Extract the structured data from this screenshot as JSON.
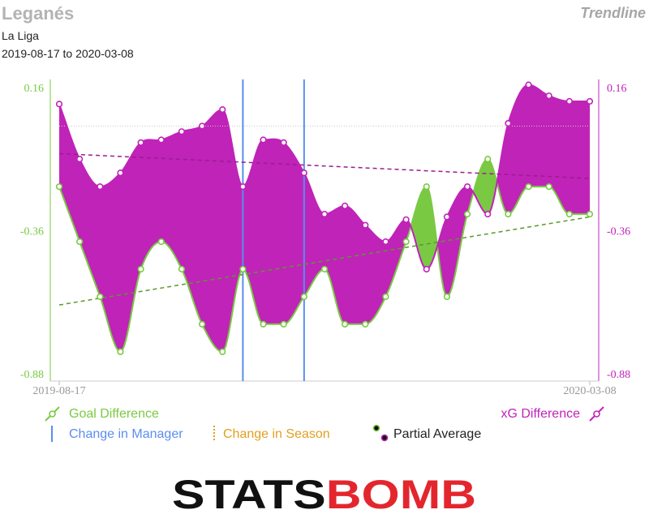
{
  "header": {
    "title": "Leganés",
    "subtitle1": "La Liga",
    "subtitle2": "2019-08-17 to 2020-03-08",
    "mode": "Trendline"
  },
  "logo": {
    "text_left": "STATS",
    "text_right": "BOMB",
    "color_left": "#111111",
    "color_right": "#e3262e"
  },
  "colors": {
    "goal": "#7ac943",
    "goal_dark": "#5a9a2c",
    "xg": "#c023b8",
    "xg_dark": "#9c1b93",
    "manager": "#5b8def",
    "season": "#e0a020"
  },
  "chart_data": {
    "type": "line",
    "x": [
      "2019-08-17",
      "2019-08-25",
      "2019-09-01",
      "2019-09-14",
      "2019-09-22",
      "2019-09-25",
      "2019-09-28",
      "2019-10-05",
      "2019-10-19",
      "2019-10-26",
      "2019-11-03",
      "2019-11-09",
      "2019-11-23",
      "2019-12-01",
      "2019-12-07",
      "2019-12-13",
      "2019-12-22",
      "2020-01-04",
      "2020-01-12",
      "2020-01-19",
      "2020-01-26",
      "2020-02-01",
      "2020-02-09",
      "2020-02-16",
      "2020-02-22",
      "2020-03-01",
      "2020-03-08"
    ],
    "x_tick_labels": [
      "2019-08-17",
      "2020-03-08"
    ],
    "series": [
      {
        "name": "Goal Difference",
        "axis": "left",
        "values": [
          -0.2,
          -0.4,
          -0.6,
          -0.8,
          -0.5,
          -0.4,
          -0.5,
          -0.7,
          -0.8,
          -0.5,
          -0.7,
          -0.7,
          -0.6,
          -0.5,
          -0.7,
          -0.7,
          -0.6,
          -0.4,
          -0.2,
          -0.6,
          -0.3,
          -0.1,
          -0.3,
          -0.2,
          -0.2,
          -0.3,
          -0.3
        ]
      },
      {
        "name": "xG Difference",
        "axis": "right",
        "values": [
          0.1,
          -0.1,
          -0.2,
          -0.15,
          -0.04,
          -0.03,
          0.0,
          0.02,
          0.08,
          -0.2,
          -0.03,
          -0.04,
          -0.15,
          -0.3,
          -0.27,
          -0.34,
          -0.4,
          -0.32,
          -0.5,
          -0.31,
          -0.2,
          -0.3,
          0.03,
          0.17,
          0.13,
          0.11,
          0.11
        ]
      }
    ],
    "y_left": {
      "ylim": [
        -0.88,
        0.16
      ],
      "ticks": [
        "0.16",
        "-0.36",
        "-0.88"
      ]
    },
    "y_right": {
      "ylim": [
        -0.88,
        0.16
      ],
      "ticks": [
        "0.16",
        "-0.36",
        "-0.88"
      ]
    },
    "trend_goal": {
      "start": -0.63,
      "end": -0.31
    },
    "trend_xg": {
      "start": -0.08,
      "end": -0.17
    },
    "reference_line": 0.02,
    "manager_changes": [
      9,
      12
    ],
    "legend": {
      "goal": "Goal Difference",
      "manager": "Change in Manager",
      "season": "Change in Season",
      "partial": "Partial Average",
      "xg": "xG Difference"
    }
  }
}
